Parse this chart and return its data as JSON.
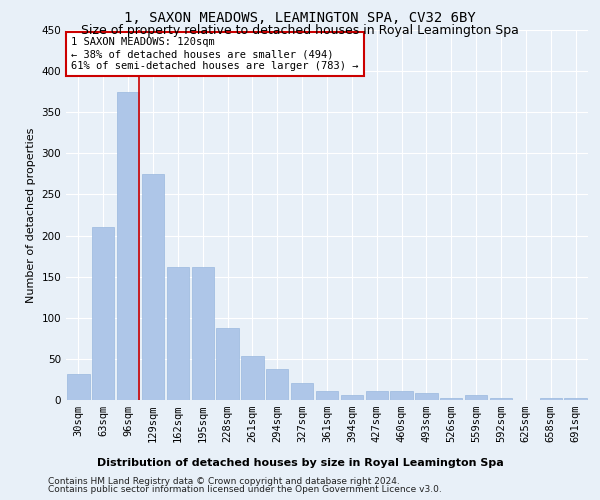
{
  "title": "1, SAXON MEADOWS, LEAMINGTON SPA, CV32 6BY",
  "subtitle": "Size of property relative to detached houses in Royal Leamington Spa",
  "xlabel": "Distribution of detached houses by size in Royal Leamington Spa",
  "ylabel": "Number of detached properties",
  "footnote1": "Contains HM Land Registry data © Crown copyright and database right 2024.",
  "footnote2": "Contains public sector information licensed under the Open Government Licence v3.0.",
  "categories": [
    "30sqm",
    "63sqm",
    "96sqm",
    "129sqm",
    "162sqm",
    "195sqm",
    "228sqm",
    "261sqm",
    "294sqm",
    "327sqm",
    "361sqm",
    "394sqm",
    "427sqm",
    "460sqm",
    "493sqm",
    "526sqm",
    "559sqm",
    "592sqm",
    "625sqm",
    "658sqm",
    "691sqm"
  ],
  "values": [
    32,
    210,
    375,
    275,
    162,
    162,
    88,
    53,
    38,
    21,
    11,
    6,
    11,
    11,
    9,
    3,
    6,
    3,
    0,
    3,
    3
  ],
  "bar_color": "#aec6e8",
  "bar_edge_color": "#9ab8de",
  "background_color": "#e8f0f8",
  "grid_color": "#ffffff",
  "red_line_index": 2,
  "annotation_text": "1 SAXON MEADOWS: 120sqm\n← 38% of detached houses are smaller (494)\n61% of semi-detached houses are larger (783) →",
  "annotation_box_color": "#ffffff",
  "annotation_box_edge": "#cc0000",
  "red_line_color": "#cc0000",
  "ylim": [
    0,
    450
  ],
  "yticks": [
    0,
    50,
    100,
    150,
    200,
    250,
    300,
    350,
    400,
    450
  ],
  "title_fontsize": 10,
  "subtitle_fontsize": 9,
  "xlabel_fontsize": 8,
  "ylabel_fontsize": 8,
  "tick_fontsize": 7.5,
  "annotation_fontsize": 7.5,
  "footnote_fontsize": 6.5
}
